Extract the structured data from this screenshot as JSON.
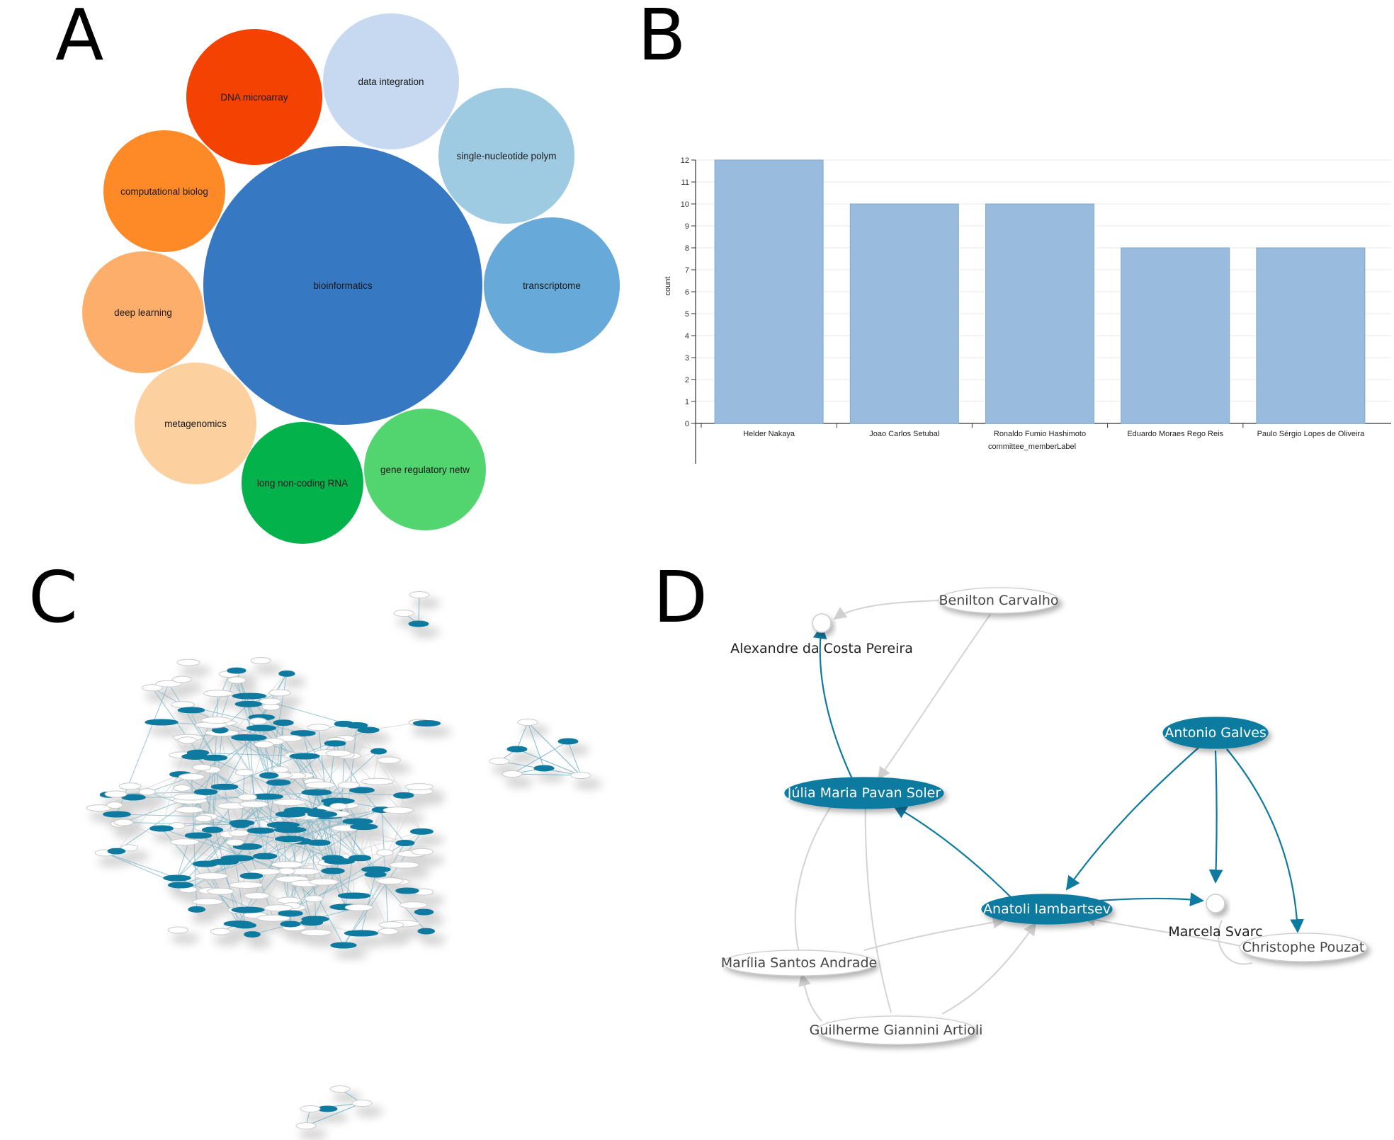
{
  "panels": {
    "a": "A",
    "b": "B",
    "c": "C",
    "d": "D"
  },
  "chart_data": [
    {
      "type": "bubble",
      "bubbles": [
        {
          "label": "bioinformatics",
          "color": "#3778c2"
        },
        {
          "label": "data integration",
          "color": "#c6d9f0"
        },
        {
          "label": "DNA microarray",
          "color": "#f44203"
        },
        {
          "label": "computational biolog",
          "color": "#fd8a26"
        },
        {
          "label": "single-nucleotide polym",
          "color": "#9ecae2"
        },
        {
          "label": "transcriptome",
          "color": "#67a9d8"
        },
        {
          "label": "deep learning",
          "color": "#fdae6b"
        },
        {
          "label": "metagenomics",
          "color": "#fdd09f"
        },
        {
          "label": "long non-coding RNA",
          "color": "#03b24b"
        },
        {
          "label": "gene regulatory netw",
          "color": "#52d46f"
        }
      ]
    },
    {
      "type": "bar",
      "categories": [
        "Helder Nakaya",
        "Joao Carlos Setubal",
        "Ronaldo Fumio Hashimoto",
        "Eduardo Moraes Rego Reis",
        "Paulo Sérgio Lopes de Oliveira"
      ],
      "values": [
        12,
        10,
        10,
        8,
        8
      ],
      "xlabel": "committee_memberLabel",
      "ylabel": "count",
      "ylim": [
        0,
        12
      ],
      "yticks": [
        0,
        1,
        2,
        3,
        4,
        5,
        6,
        7,
        8,
        9,
        10,
        11,
        12
      ],
      "bar_color": "#99bbdd",
      "grid": true
    }
  ],
  "network_d": {
    "highlight_color": "#0f7aa0",
    "nodes": [
      {
        "label": "Benilton Carvalho",
        "style": "white"
      },
      {
        "label": "Alexandre da Costa Pereira",
        "style": "point"
      },
      {
        "label": "Antonio Galves",
        "style": "blue"
      },
      {
        "label": "Júlia Maria Pavan Soler",
        "style": "blue"
      },
      {
        "label": "Anatoli Iambartsev",
        "style": "blue"
      },
      {
        "label": "Marcela Svarc",
        "style": "point"
      },
      {
        "label": "Christophe Pouzat",
        "style": "white"
      },
      {
        "label": "Marília Santos Andrade",
        "style": "white"
      },
      {
        "label": "Guilherme Giannini Artioli",
        "style": "white"
      }
    ]
  }
}
